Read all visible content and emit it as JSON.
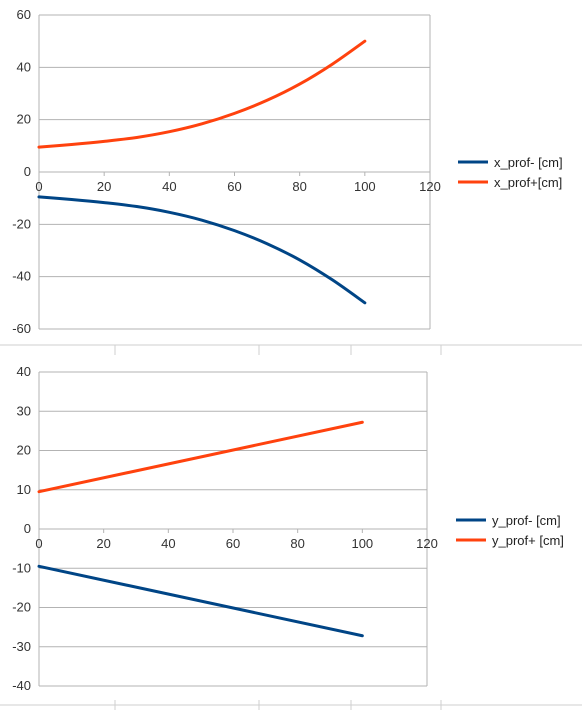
{
  "chart_data": [
    {
      "type": "line",
      "xlim": [
        0,
        120
      ],
      "ylim": [
        -60,
        60
      ],
      "x_ticks": [
        0,
        20,
        40,
        60,
        80,
        100,
        120
      ],
      "y_ticks": [
        60,
        40,
        20,
        0,
        -20,
        -40,
        -60
      ],
      "grid": "horizontal",
      "legend_position": "right",
      "series": [
        {
          "name": "x_prof- [cm]",
          "color": "#004586",
          "x": [
            0,
            10,
            20,
            30,
            40,
            50,
            60,
            70,
            80,
            90,
            100
          ],
          "y": [
            -9.5,
            -10.5,
            -11.7,
            -13.2,
            -15.4,
            -18.4,
            -22.4,
            -27.4,
            -33.6,
            -41.2,
            -50
          ]
        },
        {
          "name": "x_prof+[cm]",
          "color": "#ff420e",
          "x": [
            0,
            10,
            20,
            30,
            40,
            50,
            60,
            70,
            80,
            90,
            100
          ],
          "y": [
            9.5,
            10.5,
            11.7,
            13.2,
            15.4,
            18.4,
            22.4,
            27.4,
            33.6,
            41.2,
            50
          ]
        }
      ]
    },
    {
      "type": "line",
      "xlim": [
        0,
        120
      ],
      "ylim": [
        -40,
        40
      ],
      "x_ticks": [
        0,
        20,
        40,
        60,
        80,
        100,
        120
      ],
      "y_ticks": [
        40,
        30,
        20,
        10,
        0,
        -10,
        -20,
        -30,
        -40
      ],
      "grid": "horizontal",
      "legend_position": "right",
      "series": [
        {
          "name": "y_prof- [cm]",
          "color": "#004586",
          "x": [
            0,
            100
          ],
          "y": [
            -9.5,
            -27.2
          ]
        },
        {
          "name": "y_prof+ [cm]",
          "color": "#ff420e",
          "x": [
            0,
            100
          ],
          "y": [
            9.5,
            27.2
          ]
        }
      ]
    }
  ]
}
